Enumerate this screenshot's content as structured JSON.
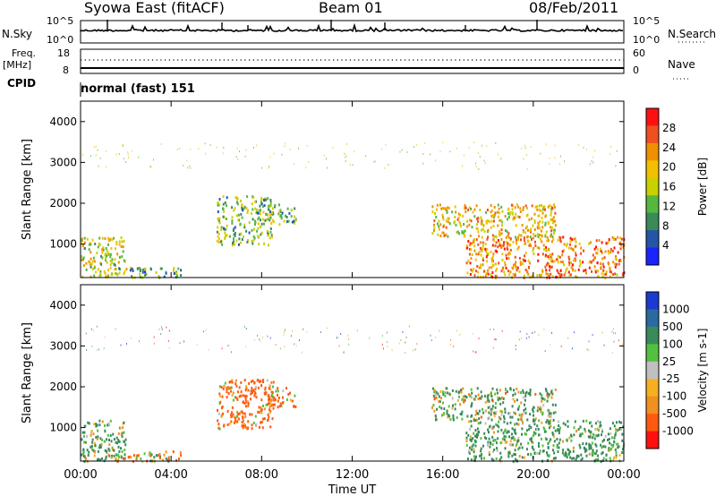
{
  "header": {
    "station": "Syowa East (fitACF)",
    "beam": "Beam 01",
    "date": "08/Feb/2011"
  },
  "summary_panels": {
    "nsky": {
      "label": "N.Sky",
      "ticks": [
        "10^5",
        "10^0"
      ]
    },
    "nsearch": {
      "label": "N.Search",
      "ticks": [
        "10^5",
        "10^0"
      ]
    },
    "freq": {
      "label_line1": "Freq.",
      "label_line2": "[MHz]",
      "ticks": [
        "18",
        "8"
      ]
    },
    "nave": {
      "label": "Nave",
      "ticks": [
        "60",
        "0"
      ]
    },
    "cpid": {
      "label": "CPID",
      "value": "normal (fast) 151"
    }
  },
  "colors": {
    "power_scale": [
      "#1a24ff",
      "#2456a8",
      "#3a8a5a",
      "#54b840",
      "#c8d000",
      "#f2c000",
      "#f09000",
      "#f05020",
      "#ff1010"
    ],
    "velocity_scale": [
      "#ff1010",
      "#ff5a10",
      "#f09020",
      "#f4b020",
      "#c0c0c0",
      "#54c040",
      "#3a8a5a",
      "#2a6aa0",
      "#1a3ad0"
    ]
  },
  "chart_data": [
    {
      "type": "heatmap",
      "title": "",
      "ylabel": "Slant Range [km]",
      "xlabel": "",
      "xlim": [
        "00:00",
        "24:00"
      ],
      "ylim": [
        180,
        4500
      ],
      "yticks": [
        1000,
        2000,
        3000,
        4000
      ],
      "colorbar": {
        "label": "Power [dB]",
        "ticks": [
          "28",
          "24",
          "20",
          "16",
          "12",
          "8",
          "4"
        ],
        "range": [
          0,
          30
        ]
      },
      "echo_regions": [
        {
          "t_start": 0.0,
          "t_end": 2.0,
          "range_start": 200,
          "range_end": 1200,
          "power_db": 16
        },
        {
          "t_start": 1.5,
          "t_end": 4.5,
          "range_start": 200,
          "range_end": 450,
          "power_db": 10
        },
        {
          "t_start": 6.0,
          "t_end": 8.5,
          "range_start": 1000,
          "range_end": 2200,
          "power_db": 12
        },
        {
          "t_start": 8.0,
          "t_end": 9.5,
          "range_start": 1500,
          "range_end": 2000,
          "power_db": 12
        },
        {
          "t_start": 15.5,
          "t_end": 21.0,
          "range_start": 1200,
          "range_end": 2000,
          "power_db": 18
        },
        {
          "t_start": 17.0,
          "t_end": 24.0,
          "range_start": 200,
          "range_end": 1200,
          "power_db": 22
        }
      ]
    },
    {
      "type": "heatmap",
      "title": "",
      "ylabel": "Slant Range [km]",
      "xlabel": "Time UT",
      "xlim": [
        "00:00",
        "24:00"
      ],
      "ylim": [
        180,
        4500
      ],
      "yticks": [
        1000,
        2000,
        3000,
        4000
      ],
      "xticks": [
        "00:00",
        "04:00",
        "08:00",
        "12:00",
        "16:00",
        "20:00",
        "00:00"
      ],
      "colorbar": {
        "label": "Velocity [m s-1]",
        "ticks": [
          "1000",
          "500",
          "100",
          "25",
          "-25",
          "-100",
          "-500",
          "-1000"
        ],
        "range": [
          -1000,
          1000
        ]
      },
      "echo_regions": [
        {
          "t_start": 0.0,
          "t_end": 2.0,
          "range_start": 200,
          "range_end": 1200,
          "velocity": 150
        },
        {
          "t_start": 1.5,
          "t_end": 4.5,
          "range_start": 200,
          "range_end": 450,
          "velocity": -50
        },
        {
          "t_start": 6.0,
          "t_end": 8.5,
          "range_start": 1000,
          "range_end": 2200,
          "velocity": -200
        },
        {
          "t_start": 8.0,
          "t_end": 9.5,
          "range_start": 1500,
          "range_end": 2000,
          "velocity": -150
        },
        {
          "t_start": 15.5,
          "t_end": 21.0,
          "range_start": 1200,
          "range_end": 2000,
          "velocity": 120
        },
        {
          "t_start": 17.0,
          "t_end": 24.0,
          "range_start": 200,
          "range_end": 1200,
          "velocity": 200
        }
      ]
    }
  ]
}
